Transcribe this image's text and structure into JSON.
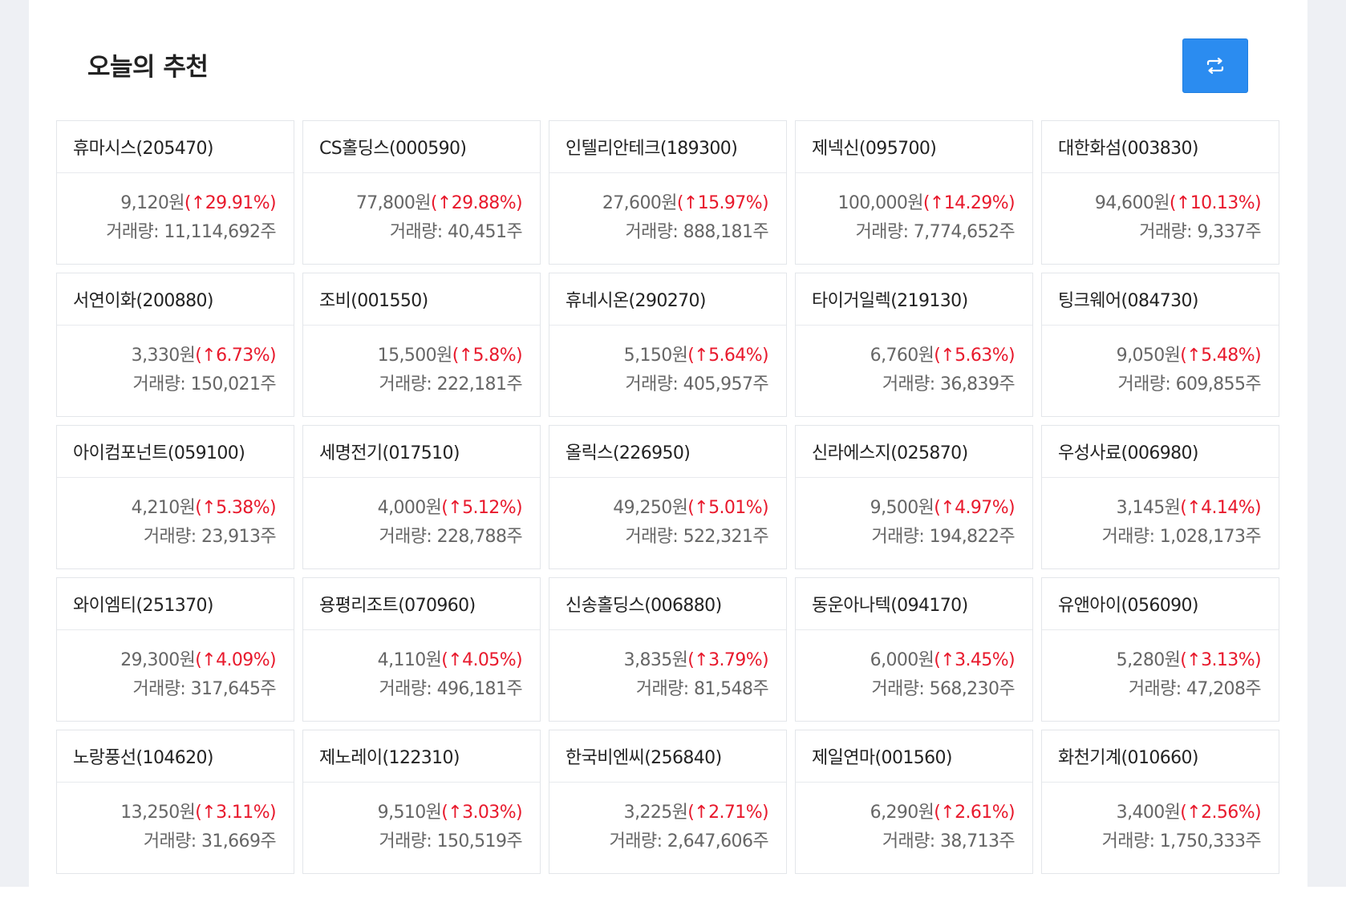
{
  "header": {
    "title": "오늘의 추천",
    "refresh_icon": "repeat-icon"
  },
  "colors": {
    "accent": "#2b8cf0",
    "up": "#e8192c"
  },
  "labels": {
    "volume_prefix": "거래량: ",
    "volume_suffix": "주",
    "price_suffix": "원",
    "up_arrow": "↑"
  },
  "stocks": [
    {
      "name": "휴마시스(205470)",
      "price": "9,120원",
      "change": "(↑29.91%)",
      "volume": "거래량: 11,114,692주"
    },
    {
      "name": "CS홀딩스(000590)",
      "price": "77,800원",
      "change": "(↑29.88%)",
      "volume": "거래량: 40,451주"
    },
    {
      "name": "인텔리안테크(189300)",
      "price": "27,600원",
      "change": "(↑15.97%)",
      "volume": "거래량: 888,181주"
    },
    {
      "name": "제넥신(095700)",
      "price": "100,000원",
      "change": "(↑14.29%)",
      "volume": "거래량: 7,774,652주"
    },
    {
      "name": "대한화섬(003830)",
      "price": "94,600원",
      "change": "(↑10.13%)",
      "volume": "거래량: 9,337주"
    },
    {
      "name": "서연이화(200880)",
      "price": "3,330원",
      "change": "(↑6.73%)",
      "volume": "거래량: 150,021주"
    },
    {
      "name": "조비(001550)",
      "price": "15,500원",
      "change": "(↑5.8%)",
      "volume": "거래량: 222,181주"
    },
    {
      "name": "휴네시온(290270)",
      "price": "5,150원",
      "change": "(↑5.64%)",
      "volume": "거래량: 405,957주"
    },
    {
      "name": "타이거일렉(219130)",
      "price": "6,760원",
      "change": "(↑5.63%)",
      "volume": "거래량: 36,839주"
    },
    {
      "name": "팅크웨어(084730)",
      "price": "9,050원",
      "change": "(↑5.48%)",
      "volume": "거래량: 609,855주"
    },
    {
      "name": "아이컴포넌트(059100)",
      "price": "4,210원",
      "change": "(↑5.38%)",
      "volume": "거래량: 23,913주"
    },
    {
      "name": "세명전기(017510)",
      "price": "4,000원",
      "change": "(↑5.12%)",
      "volume": "거래량: 228,788주"
    },
    {
      "name": "올릭스(226950)",
      "price": "49,250원",
      "change": "(↑5.01%)",
      "volume": "거래량: 522,321주"
    },
    {
      "name": "신라에스지(025870)",
      "price": "9,500원",
      "change": "(↑4.97%)",
      "volume": "거래량: 194,822주"
    },
    {
      "name": "우성사료(006980)",
      "price": "3,145원",
      "change": "(↑4.14%)",
      "volume": "거래량: 1,028,173주"
    },
    {
      "name": "와이엠티(251370)",
      "price": "29,300원",
      "change": "(↑4.09%)",
      "volume": "거래량: 317,645주"
    },
    {
      "name": "용평리조트(070960)",
      "price": "4,110원",
      "change": "(↑4.05%)",
      "volume": "거래량: 496,181주"
    },
    {
      "name": "신송홀딩스(006880)",
      "price": "3,835원",
      "change": "(↑3.79%)",
      "volume": "거래량: 81,548주"
    },
    {
      "name": "동운아나텍(094170)",
      "price": "6,000원",
      "change": "(↑3.45%)",
      "volume": "거래량: 568,230주"
    },
    {
      "name": "유앤아이(056090)",
      "price": "5,280원",
      "change": "(↑3.13%)",
      "volume": "거래량: 47,208주"
    },
    {
      "name": "노랑풍선(104620)",
      "price": "13,250원",
      "change": "(↑3.11%)",
      "volume": "거래량: 31,669주"
    },
    {
      "name": "제노레이(122310)",
      "price": "9,510원",
      "change": "(↑3.03%)",
      "volume": "거래량: 150,519주"
    },
    {
      "name": "한국비엔씨(256840)",
      "price": "3,225원",
      "change": "(↑2.71%)",
      "volume": "거래량: 2,647,606주"
    },
    {
      "name": "제일연마(001560)",
      "price": "6,290원",
      "change": "(↑2.61%)",
      "volume": "거래량: 38,713주"
    },
    {
      "name": "화천기계(010660)",
      "price": "3,400원",
      "change": "(↑2.56%)",
      "volume": "거래량: 1,750,333주"
    }
  ]
}
